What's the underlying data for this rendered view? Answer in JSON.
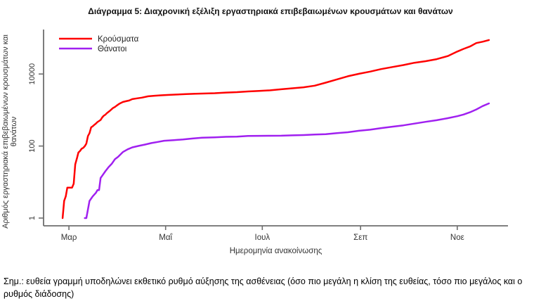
{
  "title": "Διάγραμμα 5: Διαχρονική εξέλιξη εργαστηριακά επιβεβαιωμένων κρουσμάτων και θανάτων",
  "note": "Σημ.: ευθεία γραμμή υποδηλώνει εκθετικό ρυθμό αύξησης της ασθένειας (όσο πιο μεγάλη η κλίση της ευθείας, τόσο πιο μεγάλος και ο ρυθμός διάδοσης)",
  "colors": {
    "cases": "#ff0000",
    "deaths": "#a020f0",
    "axis": "#6e6e6e",
    "axis_text": "#333333"
  },
  "chart_data": {
    "type": "line",
    "title": "Διάγραμμα 5: Διαχρονική εξέλιξη εργαστηριακά επιβεβαιωμένων κρουσμάτων και θανάτων",
    "xlabel": "Ημερομηνία ανακοίνωσης",
    "ylabel": "Αριθμός εργαστηριακά επιβεβαιωμένων κρουσμάτων και θανάτων",
    "yscale": "log",
    "ylim": [
      1,
      150000
    ],
    "grid": false,
    "legend_position": "top-left",
    "x_unit": "date",
    "x_range": [
      "2020-02-14",
      "2020-12-03"
    ],
    "x_ticks": [
      {
        "label": "Μαρ",
        "date": "2020-03-01"
      },
      {
        "label": "Μαΐ",
        "date": "2020-05-01"
      },
      {
        "label": "Ιουλ",
        "date": "2020-07-01"
      },
      {
        "label": "Σεπ",
        "date": "2020-09-01"
      },
      {
        "label": "Νοε",
        "date": "2020-11-01"
      }
    ],
    "y_ticks": [
      {
        "label": "1",
        "value": 1
      },
      {
        "label": "100",
        "value": 100
      },
      {
        "label": "10000",
        "value": 10000
      }
    ],
    "series": [
      {
        "name": "Κρούσματα",
        "color": "#ff0000",
        "points": [
          [
            "2020-02-26",
            1
          ],
          [
            "2020-02-27",
            3
          ],
          [
            "2020-02-28",
            4
          ],
          [
            "2020-02-29",
            7
          ],
          [
            "2020-03-03",
            7
          ],
          [
            "2020-03-04",
            9
          ],
          [
            "2020-03-05",
            31
          ],
          [
            "2020-03-06",
            45
          ],
          [
            "2020-03-07",
            66
          ],
          [
            "2020-03-08",
            73
          ],
          [
            "2020-03-09",
            84
          ],
          [
            "2020-03-10",
            89
          ],
          [
            "2020-03-11",
            99
          ],
          [
            "2020-03-12",
            117
          ],
          [
            "2020-03-13",
            190
          ],
          [
            "2020-03-14",
            228
          ],
          [
            "2020-03-15",
            331
          ],
          [
            "2020-03-16",
            352
          ],
          [
            "2020-03-17",
            387
          ],
          [
            "2020-03-18",
            418
          ],
          [
            "2020-03-19",
            464
          ],
          [
            "2020-03-20",
            495
          ],
          [
            "2020-03-21",
            530
          ],
          [
            "2020-03-22",
            624
          ],
          [
            "2020-03-23",
            695
          ],
          [
            "2020-03-24",
            743
          ],
          [
            "2020-03-25",
            821
          ],
          [
            "2020-03-26",
            892
          ],
          [
            "2020-03-27",
            966
          ],
          [
            "2020-03-28",
            1061
          ],
          [
            "2020-03-29",
            1156
          ],
          [
            "2020-03-30",
            1212
          ],
          [
            "2020-03-31",
            1314
          ],
          [
            "2020-04-02",
            1514
          ],
          [
            "2020-04-04",
            1673
          ],
          [
            "2020-04-06",
            1755
          ],
          [
            "2020-04-08",
            1832
          ],
          [
            "2020-04-10",
            2011
          ],
          [
            "2020-04-13",
            2114
          ],
          [
            "2020-04-16",
            2207
          ],
          [
            "2020-04-20",
            2401
          ],
          [
            "2020-04-24",
            2490
          ],
          [
            "2020-04-28",
            2566
          ],
          [
            "2020-05-02",
            2620
          ],
          [
            "2020-05-08",
            2691
          ],
          [
            "2020-05-14",
            2770
          ],
          [
            "2020-05-20",
            2840
          ],
          [
            "2020-05-26",
            2882
          ],
          [
            "2020-06-01",
            2937
          ],
          [
            "2020-06-08",
            3049
          ],
          [
            "2020-06-15",
            3134
          ],
          [
            "2020-06-22",
            3287
          ],
          [
            "2020-06-29",
            3390
          ],
          [
            "2020-07-06",
            3519
          ],
          [
            "2020-07-13",
            3772
          ],
          [
            "2020-07-20",
            4007
          ],
          [
            "2020-07-27",
            4279
          ],
          [
            "2020-08-03",
            4737
          ],
          [
            "2020-08-10",
            5749
          ],
          [
            "2020-08-17",
            7075
          ],
          [
            "2020-08-24",
            8664
          ],
          [
            "2020-08-31",
            10134
          ],
          [
            "2020-09-07",
            11663
          ],
          [
            "2020-09-14",
            13730
          ],
          [
            "2020-09-21",
            15595
          ],
          [
            "2020-09-28",
            17707
          ],
          [
            "2020-10-05",
            20541
          ],
          [
            "2020-10-12",
            22652
          ],
          [
            "2020-10-19",
            25802
          ],
          [
            "2020-10-26",
            31496
          ],
          [
            "2020-11-01",
            42080
          ],
          [
            "2020-11-05",
            49807
          ],
          [
            "2020-11-09",
            58187
          ],
          [
            "2020-11-13",
            72510
          ],
          [
            "2020-11-17",
            78825
          ],
          [
            "2020-11-21",
            87812
          ]
        ]
      },
      {
        "name": "Θάνατοι",
        "color": "#a020f0",
        "points": [
          [
            "2020-03-11",
            1
          ],
          [
            "2020-03-12",
            1
          ],
          [
            "2020-03-14",
            3
          ],
          [
            "2020-03-16",
            4
          ],
          [
            "2020-03-18",
            5
          ],
          [
            "2020-03-19",
            6
          ],
          [
            "2020-03-20",
            6
          ],
          [
            "2020-03-21",
            13
          ],
          [
            "2020-03-22",
            15
          ],
          [
            "2020-03-24",
            20
          ],
          [
            "2020-03-26",
            26
          ],
          [
            "2020-03-28",
            32
          ],
          [
            "2020-03-30",
            43
          ],
          [
            "2020-04-01",
            50
          ],
          [
            "2020-04-04",
            68
          ],
          [
            "2020-04-07",
            81
          ],
          [
            "2020-04-10",
            92
          ],
          [
            "2020-04-14",
            101
          ],
          [
            "2020-04-18",
            110
          ],
          [
            "2020-04-22",
            121
          ],
          [
            "2020-04-26",
            130
          ],
          [
            "2020-04-30",
            140
          ],
          [
            "2020-05-06",
            146
          ],
          [
            "2020-05-12",
            152
          ],
          [
            "2020-05-18",
            162
          ],
          [
            "2020-05-24",
            170
          ],
          [
            "2020-06-01",
            175
          ],
          [
            "2020-06-08",
            180
          ],
          [
            "2020-06-15",
            183
          ],
          [
            "2020-06-22",
            190
          ],
          [
            "2020-06-29",
            192
          ],
          [
            "2020-07-06",
            193
          ],
          [
            "2020-07-13",
            194
          ],
          [
            "2020-07-20",
            198
          ],
          [
            "2020-07-27",
            202
          ],
          [
            "2020-08-03",
            208
          ],
          [
            "2020-08-10",
            213
          ],
          [
            "2020-08-17",
            228
          ],
          [
            "2020-08-24",
            242
          ],
          [
            "2020-08-31",
            266
          ],
          [
            "2020-09-07",
            284
          ],
          [
            "2020-09-14",
            315
          ],
          [
            "2020-09-21",
            344
          ],
          [
            "2020-09-28",
            376
          ],
          [
            "2020-10-05",
            420
          ],
          [
            "2020-10-12",
            469
          ],
          [
            "2020-10-19",
            520
          ],
          [
            "2020-10-26",
            593
          ],
          [
            "2020-11-01",
            673
          ],
          [
            "2020-11-05",
            749
          ],
          [
            "2020-11-09",
            866
          ],
          [
            "2020-11-13",
            1035
          ],
          [
            "2020-11-17",
            1288
          ],
          [
            "2020-11-21",
            1527
          ]
        ]
      }
    ]
  }
}
